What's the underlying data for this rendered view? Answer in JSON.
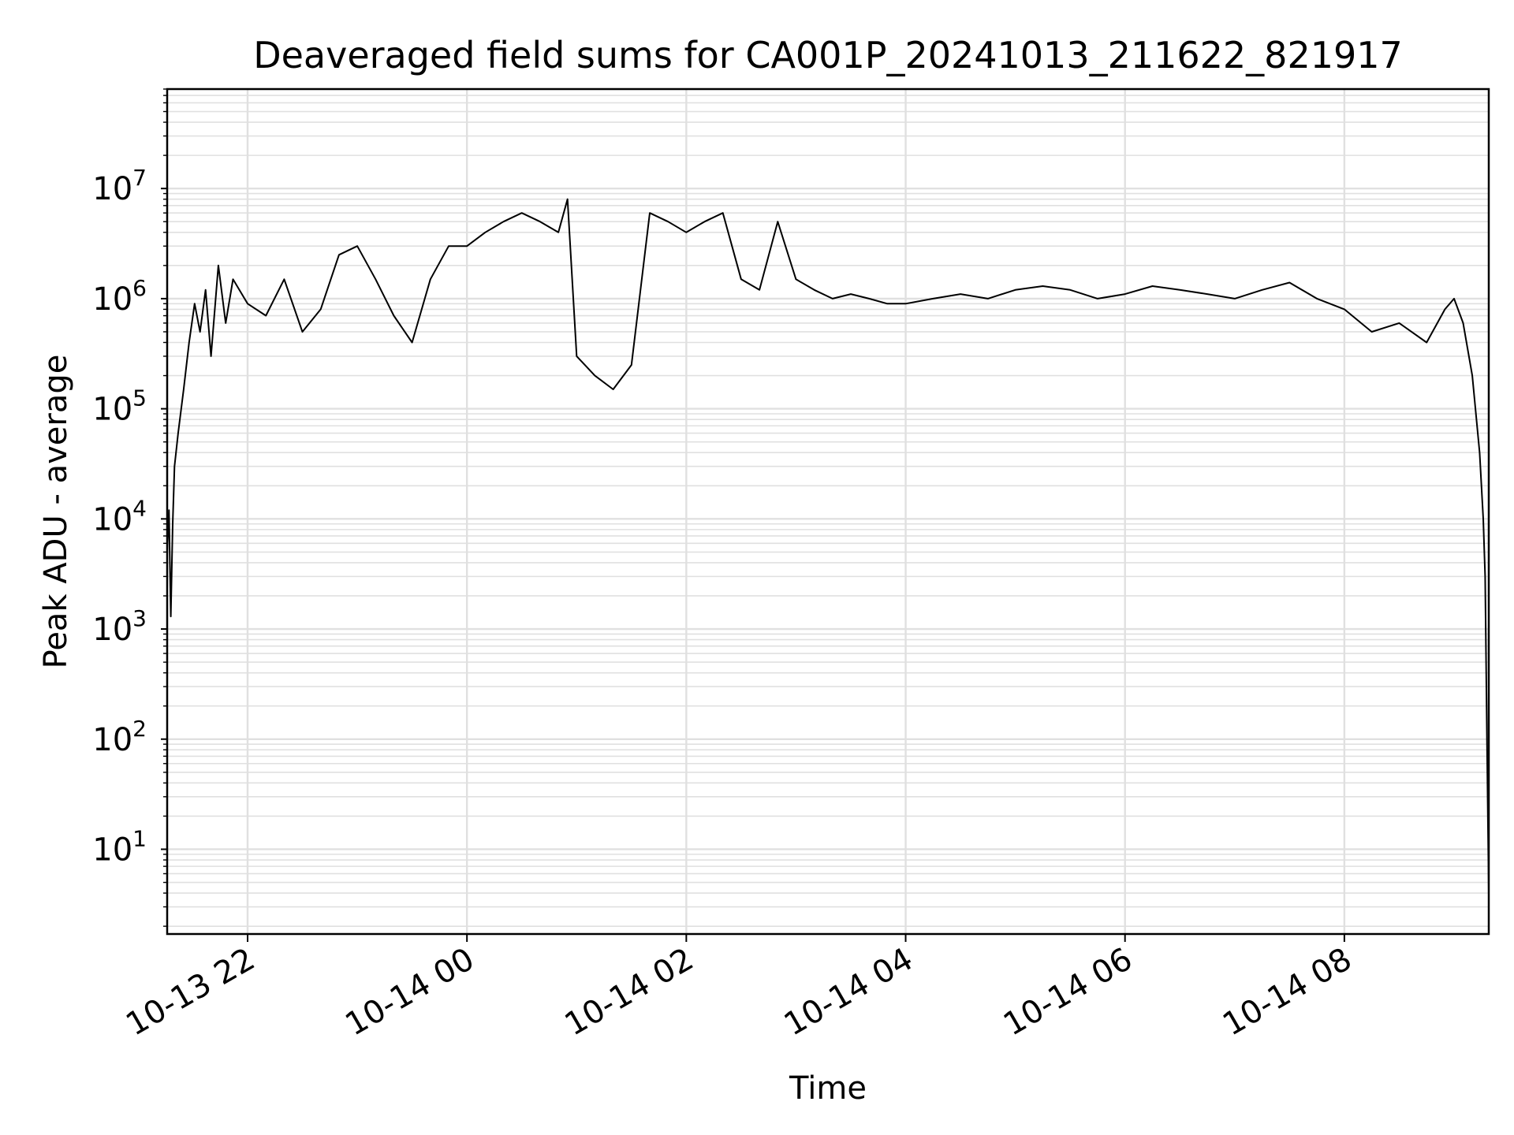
{
  "chart_data": {
    "type": "line",
    "title": "Deaveraged field sums for CA001P_20241013_211622_821917",
    "xlabel": "Time",
    "ylabel": "Peak ADU - average",
    "x_scale": "time",
    "y_scale": "log",
    "xlim": [
      "2024-10-13 21:16",
      "2024-10-14 09:19"
    ],
    "ylim": [
      1.7,
      80000000
    ],
    "x_ticks": [
      {
        "value": "2024-10-13 22:00",
        "label": "10-13 22"
      },
      {
        "value": "2024-10-14 00:00",
        "label": "10-14 00"
      },
      {
        "value": "2024-10-14 02:00",
        "label": "10-14 02"
      },
      {
        "value": "2024-10-14 04:00",
        "label": "10-14 04"
      },
      {
        "value": "2024-10-14 06:00",
        "label": "10-14 06"
      },
      {
        "value": "2024-10-14 08:00",
        "label": "10-14 08"
      }
    ],
    "y_ticks": [
      {
        "value": 10,
        "base": "10",
        "exp": "1"
      },
      {
        "value": 100,
        "base": "10",
        "exp": "2"
      },
      {
        "value": 1000,
        "base": "10",
        "exp": "3"
      },
      {
        "value": 10000,
        "base": "10",
        "exp": "4"
      },
      {
        "value": 100000,
        "base": "10",
        "exp": "5"
      },
      {
        "value": 1000000,
        "base": "10",
        "exp": "6"
      },
      {
        "value": 10000000,
        "base": "10",
        "exp": "7"
      }
    ],
    "grid": true,
    "line_color": "#000000",
    "grid_color": "#e0e0e0",
    "series": [
      {
        "x": [
          "2024-10-13 21:16",
          "2024-10-13 21:17",
          "2024-10-13 21:18",
          "2024-10-13 21:19",
          "2024-10-13 21:20",
          "2024-10-13 21:22",
          "2024-10-13 21:25",
          "2024-10-13 21:28",
          "2024-10-13 21:31",
          "2024-10-13 21:34",
          "2024-10-13 21:37",
          "2024-10-13 21:40",
          "2024-10-13 21:44",
          "2024-10-13 21:48",
          "2024-10-13 21:52",
          "2024-10-13 22:00",
          "2024-10-13 22:10",
          "2024-10-13 22:20",
          "2024-10-13 22:30",
          "2024-10-13 22:40",
          "2024-10-13 22:50",
          "2024-10-13 23:00",
          "2024-10-13 23:10",
          "2024-10-13 23:20",
          "2024-10-13 23:30",
          "2024-10-13 23:40",
          "2024-10-13 23:50",
          "2024-10-14 00:00",
          "2024-10-14 00:10",
          "2024-10-14 00:20",
          "2024-10-14 00:30",
          "2024-10-14 00:40",
          "2024-10-14 00:50",
          "2024-10-14 00:55",
          "2024-10-14 01:00",
          "2024-10-14 01:10",
          "2024-10-14 01:20",
          "2024-10-14 01:30",
          "2024-10-14 01:40",
          "2024-10-14 01:50",
          "2024-10-14 02:00",
          "2024-10-14 02:10",
          "2024-10-14 02:20",
          "2024-10-14 02:30",
          "2024-10-14 02:40",
          "2024-10-14 02:50",
          "2024-10-14 03:00",
          "2024-10-14 03:10",
          "2024-10-14 03:20",
          "2024-10-14 03:30",
          "2024-10-14 03:40",
          "2024-10-14 03:50",
          "2024-10-14 04:00",
          "2024-10-14 04:15",
          "2024-10-14 04:30",
          "2024-10-14 04:45",
          "2024-10-14 05:00",
          "2024-10-14 05:15",
          "2024-10-14 05:30",
          "2024-10-14 05:45",
          "2024-10-14 06:00",
          "2024-10-14 06:15",
          "2024-10-14 06:30",
          "2024-10-14 06:45",
          "2024-10-14 07:00",
          "2024-10-14 07:15",
          "2024-10-14 07:30",
          "2024-10-14 07:45",
          "2024-10-14 08:00",
          "2024-10-14 08:15",
          "2024-10-14 08:30",
          "2024-10-14 08:45",
          "2024-10-14 08:55",
          "2024-10-14 09:00",
          "2024-10-14 09:05",
          "2024-10-14 09:10",
          "2024-10-14 09:14",
          "2024-10-14 09:16",
          "2024-10-14 09:17",
          "2024-10-14 09:18",
          "2024-10-14 09:19"
        ],
        "y": [
          5000,
          12000,
          1300,
          9000,
          30000,
          60000,
          150000,
          400000,
          900000,
          500000,
          1200000,
          300000,
          2000000,
          600000,
          1500000,
          900000,
          700000,
          1500000,
          500000,
          800000,
          2500000,
          3000000,
          1500000,
          700000,
          400000,
          1500000,
          3000000,
          3000000,
          4000000,
          5000000,
          6000000,
          5000000,
          4000000,
          8000000,
          300000,
          200000,
          150000,
          250000,
          6000000,
          5000000,
          4000000,
          5000000,
          6000000,
          1500000,
          1200000,
          5000000,
          1500000,
          1200000,
          1000000,
          1100000,
          1000000,
          900000,
          900000,
          1000000,
          1100000,
          1000000,
          1200000,
          1300000,
          1200000,
          1000000,
          1100000,
          1300000,
          1200000,
          1100000,
          1000000,
          1200000,
          1400000,
          1000000,
          800000,
          500000,
          600000,
          400000,
          800000,
          1000000,
          600000,
          200000,
          40000,
          10000,
          3000,
          100,
          4
        ]
      }
    ]
  }
}
